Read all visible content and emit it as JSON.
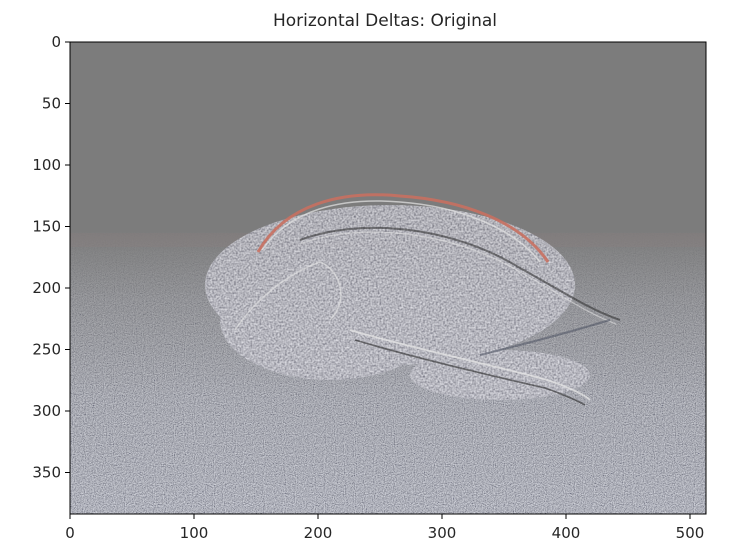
{
  "figure": {
    "title": "Horizontal Deltas: Original",
    "image_description": "",
    "x_axis": {
      "range": [
        0,
        512
      ],
      "ticks": [
        0,
        100,
        200,
        300,
        400,
        500
      ]
    },
    "y_axis": {
      "range": [
        0,
        384
      ],
      "inverted": true,
      "ticks": [
        0,
        50,
        100,
        150,
        200,
        250,
        300,
        350
      ]
    },
    "colors": {
      "background_gray": "#7c7c7c",
      "edge_red": "#c87060",
      "edge_light": "#e6e6e6",
      "edge_dark": "#2a2a2a",
      "ground_blue_tint": "#8c93a8"
    }
  }
}
